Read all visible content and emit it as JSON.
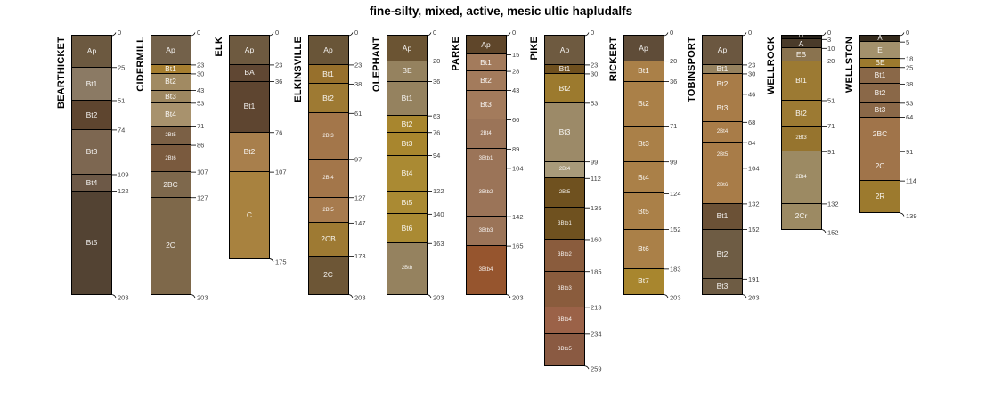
{
  "chart_data": {
    "type": "bar",
    "variant": "soil-profile-depth-columns",
    "title": "fine-silty, mixed, active, mesic ultic hapludalfs",
    "depth_unit": "cm",
    "depth_max_shown": 259,
    "legend_position": "none",
    "grid": false,
    "profiles": [
      {
        "name": "BEARTHICKET",
        "horizons": [
          {
            "label": "Ap",
            "top_cm": 0,
            "bottom_cm": 25,
            "color": "#6c5940"
          },
          {
            "label": "Bt1",
            "top_cm": 25,
            "bottom_cm": 51,
            "color": "#8b7a64"
          },
          {
            "label": "Bt2",
            "top_cm": 51,
            "bottom_cm": 74,
            "color": "#5e452f"
          },
          {
            "label": "Bt3",
            "top_cm": 74,
            "bottom_cm": 109,
            "color": "#7d6751"
          },
          {
            "label": "Bt4",
            "top_cm": 109,
            "bottom_cm": 122,
            "color": "#6d5947"
          },
          {
            "label": "Bt5",
            "top_cm": 122,
            "bottom_cm": 203,
            "color": "#534333"
          }
        ]
      },
      {
        "name": "CIDERMILL",
        "horizons": [
          {
            "label": "Ap",
            "top_cm": 0,
            "bottom_cm": 23,
            "color": "#73614a"
          },
          {
            "label": "Bt1",
            "top_cm": 23,
            "bottom_cm": 30,
            "color": "#a67e30"
          },
          {
            "label": "Bt2",
            "top_cm": 30,
            "bottom_cm": 43,
            "color": "#a18a62"
          },
          {
            "label": "Bt3",
            "top_cm": 43,
            "bottom_cm": 53,
            "color": "#9d8760"
          },
          {
            "label": "Bt4",
            "top_cm": 53,
            "bottom_cm": 71,
            "color": "#a8926d"
          },
          {
            "label": "2Bt5",
            "top_cm": 71,
            "bottom_cm": 86,
            "color": "#7b6045"
          },
          {
            "label": "2Bt6",
            "top_cm": 86,
            "bottom_cm": 107,
            "color": "#7a5a3e"
          },
          {
            "label": "2BC",
            "top_cm": 107,
            "bottom_cm": 127,
            "color": "#7e684c"
          },
          {
            "label": "2C",
            "top_cm": 127,
            "bottom_cm": 203,
            "color": "#7e684a"
          }
        ]
      },
      {
        "name": "ELK",
        "horizons": [
          {
            "label": "Ap",
            "top_cm": 0,
            "bottom_cm": 23,
            "color": "#6e5a40"
          },
          {
            "label": "BA",
            "top_cm": 23,
            "bottom_cm": 36,
            "color": "#604733"
          },
          {
            "label": "Bt1",
            "top_cm": 36,
            "bottom_cm": 76,
            "color": "#5e4530"
          },
          {
            "label": "Bt2",
            "top_cm": 76,
            "bottom_cm": 107,
            "color": "#a87f4c"
          },
          {
            "label": "C",
            "top_cm": 107,
            "bottom_cm": 175,
            "color": "#a8823f"
          }
        ]
      },
      {
        "name": "ELKINSVILLE",
        "horizons": [
          {
            "label": "Ap",
            "top_cm": 0,
            "bottom_cm": 23,
            "color": "#695538"
          },
          {
            "label": "Bt1",
            "top_cm": 23,
            "bottom_cm": 38,
            "color": "#97702c"
          },
          {
            "label": "Bt2",
            "top_cm": 38,
            "bottom_cm": 61,
            "color": "#9e7a33"
          },
          {
            "label": "2Bt3",
            "top_cm": 61,
            "bottom_cm": 97,
            "color": "#a3764a"
          },
          {
            "label": "2Bt4",
            "top_cm": 97,
            "bottom_cm": 127,
            "color": "#a3764a"
          },
          {
            "label": "2Bt5",
            "top_cm": 127,
            "bottom_cm": 147,
            "color": "#a77b4e"
          },
          {
            "label": "2CB",
            "top_cm": 147,
            "bottom_cm": 173,
            "color": "#9e7a33"
          },
          {
            "label": "2C",
            "top_cm": 173,
            "bottom_cm": 203,
            "color": "#6d5636"
          }
        ]
      },
      {
        "name": "OLEPHANT",
        "horizons": [
          {
            "label": "Ap",
            "top_cm": 0,
            "bottom_cm": 20,
            "color": "#6b5433"
          },
          {
            "label": "BE",
            "top_cm": 20,
            "bottom_cm": 36,
            "color": "#95825f"
          },
          {
            "label": "Bt1",
            "top_cm": 36,
            "bottom_cm": 63,
            "color": "#95825f"
          },
          {
            "label": "Bt2",
            "top_cm": 63,
            "bottom_cm": 76,
            "color": "#a8862e"
          },
          {
            "label": "Bt3",
            "top_cm": 76,
            "bottom_cm": 94,
            "color": "#a8862e"
          },
          {
            "label": "Bt4",
            "top_cm": 94,
            "bottom_cm": 122,
            "color": "#aa8a33"
          },
          {
            "label": "Bt5",
            "top_cm": 122,
            "bottom_cm": 140,
            "color": "#aa8a33"
          },
          {
            "label": "Bt6",
            "top_cm": 140,
            "bottom_cm": 163,
            "color": "#aa8a33"
          },
          {
            "label": "2Btb",
            "top_cm": 163,
            "bottom_cm": 203,
            "color": "#95825f"
          }
        ]
      },
      {
        "name": "PARKE",
        "horizons": [
          {
            "label": "Ap",
            "top_cm": 0,
            "bottom_cm": 15,
            "color": "#5f462a"
          },
          {
            "label": "Bt1",
            "top_cm": 15,
            "bottom_cm": 28,
            "color": "#a37b5c"
          },
          {
            "label": "Bt2",
            "top_cm": 28,
            "bottom_cm": 43,
            "color": "#a37b5c"
          },
          {
            "label": "Bt3",
            "top_cm": 43,
            "bottom_cm": 66,
            "color": "#a37b5c"
          },
          {
            "label": "2Bt4",
            "top_cm": 66,
            "bottom_cm": 89,
            "color": "#9b7458"
          },
          {
            "label": "3Btb1",
            "top_cm": 89,
            "bottom_cm": 104,
            "color": "#9b7458"
          },
          {
            "label": "3Btb2",
            "top_cm": 104,
            "bottom_cm": 142,
            "color": "#9b7458"
          },
          {
            "label": "3Btb3",
            "top_cm": 142,
            "bottom_cm": 165,
            "color": "#9b7458"
          },
          {
            "label": "3Btb4",
            "top_cm": 165,
            "bottom_cm": 203,
            "color": "#96552e"
          }
        ]
      },
      {
        "name": "PIKE",
        "horizons": [
          {
            "label": "Ap",
            "top_cm": 0,
            "bottom_cm": 23,
            "color": "#6e5a40"
          },
          {
            "label": "Bt1",
            "top_cm": 23,
            "bottom_cm": 30,
            "color": "#6f501f"
          },
          {
            "label": "Bt2",
            "top_cm": 30,
            "bottom_cm": 53,
            "color": "#9c7a2e"
          },
          {
            "label": "Bt3",
            "top_cm": 53,
            "bottom_cm": 99,
            "color": "#9c8a68"
          },
          {
            "label": "2Bt4",
            "top_cm": 99,
            "bottom_cm": 112,
            "color": "#a89a7a"
          },
          {
            "label": "2Bt5",
            "top_cm": 112,
            "bottom_cm": 135,
            "color": "#6f511f"
          },
          {
            "label": "3Btb1",
            "top_cm": 135,
            "bottom_cm": 160,
            "color": "#6f511f"
          },
          {
            "label": "3Btb2",
            "top_cm": 160,
            "bottom_cm": 185,
            "color": "#8a5c3d"
          },
          {
            "label": "3Btb3",
            "top_cm": 185,
            "bottom_cm": 213,
            "color": "#8a5c3d"
          },
          {
            "label": "3Btb4",
            "top_cm": 213,
            "bottom_cm": 234,
            "color": "#9b6248"
          },
          {
            "label": "3Btb5",
            "top_cm": 234,
            "bottom_cm": 259,
            "color": "#8a5a42"
          }
        ]
      },
      {
        "name": "RICKERT",
        "horizons": [
          {
            "label": "Ap",
            "top_cm": 0,
            "bottom_cm": 20,
            "color": "#5f4c38"
          },
          {
            "label": "Bt1",
            "top_cm": 20,
            "bottom_cm": 36,
            "color": "#aa8048"
          },
          {
            "label": "Bt2",
            "top_cm": 36,
            "bottom_cm": 71,
            "color": "#aa8048"
          },
          {
            "label": "Bt3",
            "top_cm": 71,
            "bottom_cm": 99,
            "color": "#aa8048"
          },
          {
            "label": "Bt4",
            "top_cm": 99,
            "bottom_cm": 124,
            "color": "#aa8048"
          },
          {
            "label": "Bt5",
            "top_cm": 124,
            "bottom_cm": 152,
            "color": "#aa8048"
          },
          {
            "label": "Bt6",
            "top_cm": 152,
            "bottom_cm": 183,
            "color": "#aa8048"
          },
          {
            "label": "Bt7",
            "top_cm": 183,
            "bottom_cm": 203,
            "color": "#a8862e"
          }
        ]
      },
      {
        "name": "TOBINSPORT",
        "horizons": [
          {
            "label": "Ap",
            "top_cm": 0,
            "bottom_cm": 23,
            "color": "#6b5740"
          },
          {
            "label": "Bt1",
            "top_cm": 23,
            "bottom_cm": 30,
            "color": "#96825f"
          },
          {
            "label": "Bt2",
            "top_cm": 30,
            "bottom_cm": 46,
            "color": "#a87c48"
          },
          {
            "label": "Bt3",
            "top_cm": 46,
            "bottom_cm": 68,
            "color": "#a87c48"
          },
          {
            "label": "2Bt4",
            "top_cm": 68,
            "bottom_cm": 84,
            "color": "#a87c48"
          },
          {
            "label": "2Bt5",
            "top_cm": 84,
            "bottom_cm": 104,
            "color": "#a87c48"
          },
          {
            "label": "2Bt6",
            "top_cm": 104,
            "bottom_cm": 132,
            "color": "#a87c48"
          },
          {
            "label": "Bt1",
            "top_cm": 132,
            "bottom_cm": 152,
            "color": "#6b5136"
          },
          {
            "label": "Bt2",
            "top_cm": 152,
            "bottom_cm": 191,
            "color": "#6e5c44"
          },
          {
            "label": "Bt3",
            "top_cm": 191,
            "bottom_cm": 203,
            "color": "#6e5c44"
          }
        ]
      },
      {
        "name": "WELLROCK",
        "horizons": [
          {
            "label": "Oi",
            "top_cm": 0,
            "bottom_cm": 3,
            "color": "#262018"
          },
          {
            "label": "A",
            "top_cm": 3,
            "bottom_cm": 10,
            "color": "#4a3b2a"
          },
          {
            "label": "EB",
            "top_cm": 10,
            "bottom_cm": 20,
            "color": "#8a734f"
          },
          {
            "label": "Bt1",
            "top_cm": 20,
            "bottom_cm": 51,
            "color": "#9c7a33"
          },
          {
            "label": "Bt2",
            "top_cm": 51,
            "bottom_cm": 71,
            "color": "#9c7a33"
          },
          {
            "label": "2Bt3",
            "top_cm": 71,
            "bottom_cm": 91,
            "color": "#96742e"
          },
          {
            "label": "2Bt4",
            "top_cm": 91,
            "bottom_cm": 132,
            "color": "#9c8a63"
          },
          {
            "label": "2Cr",
            "top_cm": 132,
            "bottom_cm": 152,
            "color": "#9c8a63"
          }
        ]
      },
      {
        "name": "WELLSTON",
        "horizons": [
          {
            "label": "A",
            "top_cm": 0,
            "bottom_cm": 5,
            "color": "#342a1c"
          },
          {
            "label": "E",
            "top_cm": 5,
            "bottom_cm": 18,
            "color": "#a3916c"
          },
          {
            "label": "BE",
            "top_cm": 18,
            "bottom_cm": 25,
            "color": "#9c7a2e"
          },
          {
            "label": "Bt1",
            "top_cm": 25,
            "bottom_cm": 38,
            "color": "#8a6848"
          },
          {
            "label": "Bt2",
            "top_cm": 38,
            "bottom_cm": 53,
            "color": "#8a6848"
          },
          {
            "label": "Bt3",
            "top_cm": 53,
            "bottom_cm": 64,
            "color": "#8a6848"
          },
          {
            "label": "2BC",
            "top_cm": 64,
            "bottom_cm": 91,
            "color": "#a0744a"
          },
          {
            "label": "2C",
            "top_cm": 91,
            "bottom_cm": 114,
            "color": "#a0744a"
          },
          {
            "label": "2R",
            "top_cm": 114,
            "bottom_cm": 139,
            "color": "#9c7a2e"
          }
        ]
      }
    ]
  }
}
